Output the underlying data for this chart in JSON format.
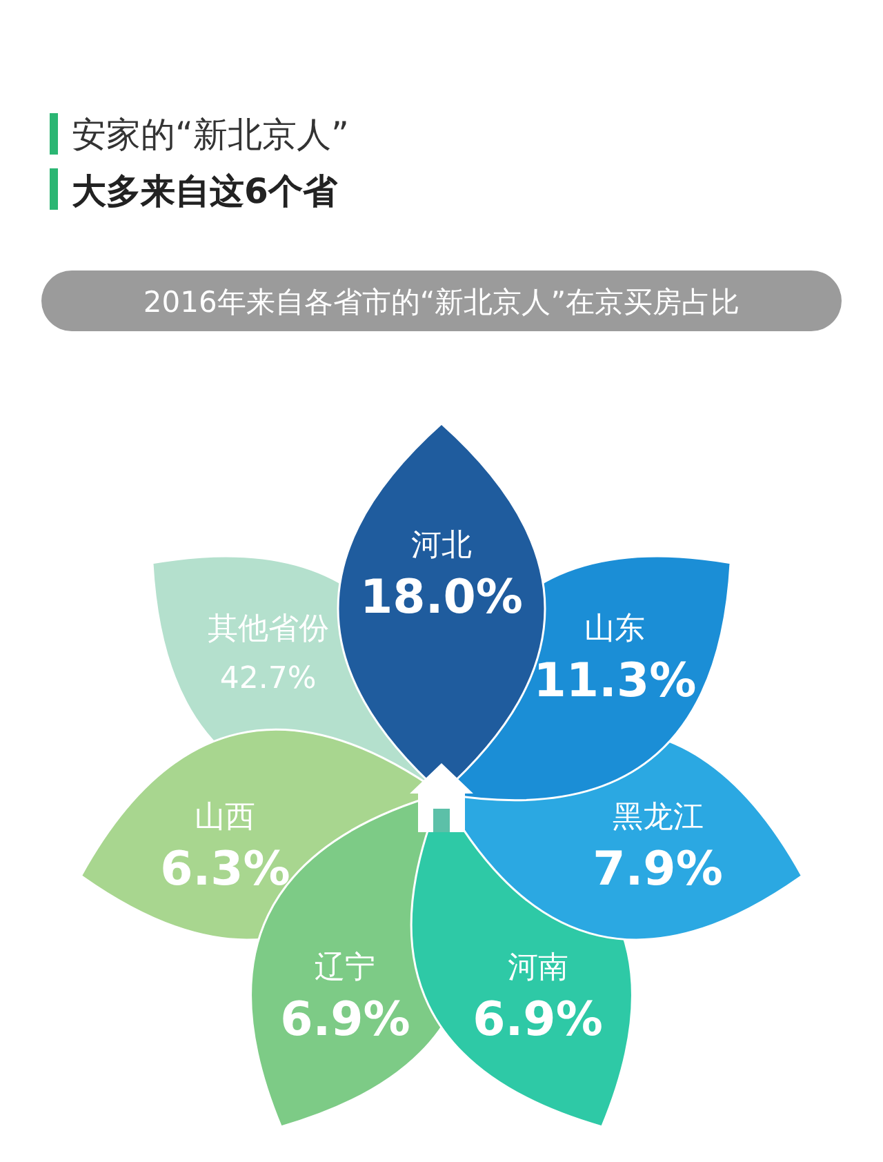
{
  "chart_data": {
    "type": "other",
    "title": "2016年来自各省市的“新北京人”在京买房占比",
    "annotations": [
      "安家的“新北京人”",
      "大多来自这6个省"
    ],
    "categories": [
      "河北",
      "山东",
      "黑龙江",
      "河南",
      "辽宁",
      "山西",
      "其他省份"
    ],
    "values": [
      18.0,
      11.3,
      7.9,
      6.9,
      6.9,
      6.3,
      42.7
    ],
    "value_labels": [
      "18.0%",
      "11.3%",
      "7.9%",
      "6.9%",
      "6.9%",
      "6.3%",
      "42.7%"
    ],
    "colors": [
      "#1f5c9e",
      "#1b8ed6",
      "#2ba8e2",
      "#2ec9a6",
      "#7dcb86",
      "#a8d68f",
      "#b4e0cd"
    ]
  }
}
